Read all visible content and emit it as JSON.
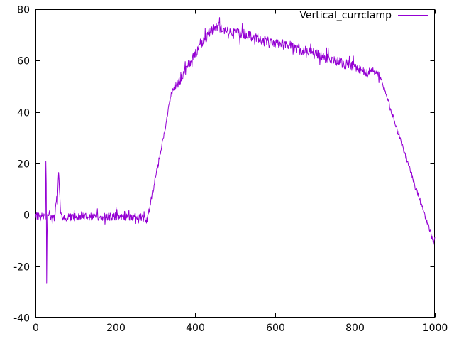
{
  "window": {
    "background": "#ffffff"
  },
  "chart_data": {
    "type": "line",
    "title": "",
    "xlabel": "",
    "ylabel": "",
    "xlim": [
      0,
      1000
    ],
    "ylim": [
      -40,
      80
    ],
    "x_ticks": [
      0,
      200,
      400,
      600,
      800,
      1000
    ],
    "y_ticks": [
      -40,
      -20,
      0,
      20,
      40,
      60,
      80
    ],
    "grid": false,
    "legend_position": "top-right-inside",
    "axis_color": "#000000",
    "tick_label_color": "#000000",
    "series": [
      {
        "name": "Vertical_currclamp",
        "color": "#9400d3",
        "description": "noisy trace: flat near 0 with a -27/+32 spike at x~27 and a small bump to ~17 at x~58, steep rise from x~280, peak ~73 at x~450, slow noisy decline to ~55 at x~860, then linear fall to ~-10 at x=1000",
        "keypoints": [
          [
            0,
            -0.5
          ],
          [
            22,
            -0.5
          ],
          [
            25,
            -1
          ],
          [
            26.5,
            32
          ],
          [
            28,
            -27
          ],
          [
            29.5,
            0
          ],
          [
            32,
            -0.5
          ],
          [
            48,
            -1
          ],
          [
            53,
            7
          ],
          [
            55,
            5
          ],
          [
            58,
            17
          ],
          [
            60,
            10
          ],
          [
            63,
            1
          ],
          [
            66,
            -1.5
          ],
          [
            80,
            -1
          ],
          [
            120,
            -0.8
          ],
          [
            200,
            -0.7
          ],
          [
            268,
            -1
          ],
          [
            280,
            -2
          ],
          [
            285,
            2
          ],
          [
            295,
            10
          ],
          [
            305,
            18
          ],
          [
            315,
            26
          ],
          [
            325,
            34
          ],
          [
            333,
            41
          ],
          [
            340,
            47
          ],
          [
            348,
            50
          ],
          [
            360,
            52
          ],
          [
            375,
            56
          ],
          [
            390,
            60
          ],
          [
            405,
            63.5
          ],
          [
            420,
            67
          ],
          [
            435,
            70.5
          ],
          [
            448,
            73
          ],
          [
            455,
            73.3
          ],
          [
            480,
            72
          ],
          [
            520,
            70.5
          ],
          [
            560,
            68.5
          ],
          [
            600,
            66.8
          ],
          [
            640,
            65.5
          ],
          [
            680,
            63.5
          ],
          [
            720,
            61.5
          ],
          [
            760,
            59.5
          ],
          [
            790,
            58
          ],
          [
            812,
            56.5
          ],
          [
            830,
            55
          ],
          [
            845,
            55.3
          ],
          [
            861,
            54.7
          ],
          [
            875,
            48
          ],
          [
            900,
            35.9
          ],
          [
            925,
            23.8
          ],
          [
            950,
            11.7
          ],
          [
            975,
            -0.3
          ],
          [
            993,
            -9
          ],
          [
            996,
            -11
          ],
          [
            1000,
            -9.5
          ]
        ],
        "noise_segments": [
          [
            0,
            23,
            1.4
          ],
          [
            23,
            31,
            0.3
          ],
          [
            31,
            48,
            1.4
          ],
          [
            48,
            66,
            0.9
          ],
          [
            66,
            280,
            1.5
          ],
          [
            280,
            345,
            1.2
          ],
          [
            345,
            455,
            1.9
          ],
          [
            455,
            861,
            2.0
          ],
          [
            861,
            994,
            1.0
          ],
          [
            994,
            1000,
            0.6
          ]
        ],
        "noise_spike_prob": 0.07,
        "noise_spike_factor": 2.3,
        "sample_step": 1
      }
    ]
  }
}
